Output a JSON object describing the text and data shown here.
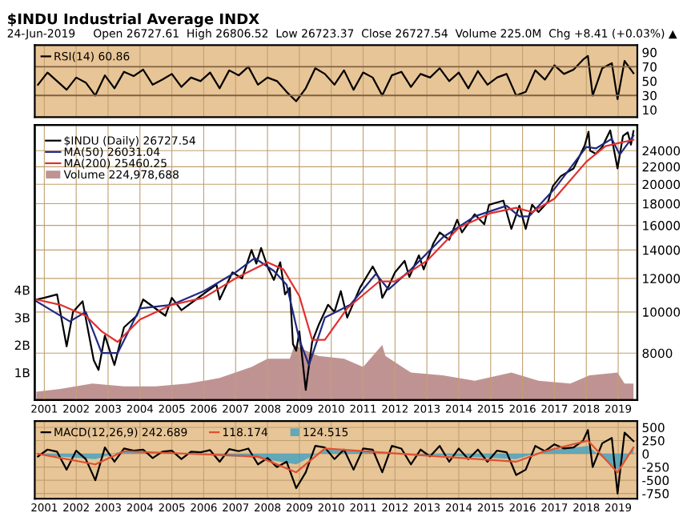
{
  "chart_data": [
    {
      "type": "line",
      "title": "$INDU Industrial Average INDX",
      "subtitle": "24-Jun-2019     Open 26727.61  High 26806.52  Low 26723.37  Close 26727.54  Volume 225.0M  Chg +8.41 (+0.03%) ▲",
      "series": [
        {
          "name": "RSI(14) 60.86",
          "color": "#000000",
          "x": [
            2000.8,
            2001.1,
            2001.4,
            2001.7,
            2002.0,
            2002.3,
            2002.6,
            2002.9,
            2003.2,
            2003.5,
            2003.8,
            2004.1,
            2004.4,
            2004.7,
            2005.0,
            2005.3,
            2005.6,
            2005.9,
            2006.2,
            2006.5,
            2006.8,
            2007.1,
            2007.4,
            2007.7,
            2008.0,
            2008.3,
            2008.6,
            2008.9,
            2009.2,
            2009.5,
            2009.8,
            2010.1,
            2010.4,
            2010.7,
            2011.0,
            2011.3,
            2011.6,
            2011.9,
            2012.2,
            2012.5,
            2012.8,
            2013.1,
            2013.4,
            2013.7,
            2014.0,
            2014.3,
            2014.6,
            2014.9,
            2015.2,
            2015.5,
            2015.8,
            2016.1,
            2016.4,
            2016.7,
            2017.0,
            2017.3,
            2017.6,
            2017.9,
            2018.05,
            2018.2,
            2018.5,
            2018.8,
            2018.98,
            2019.2,
            2019.48
          ],
          "values": [
            45,
            62,
            50,
            38,
            55,
            48,
            30,
            58,
            40,
            63,
            57,
            66,
            45,
            52,
            60,
            42,
            55,
            50,
            62,
            40,
            65,
            58,
            70,
            45,
            55,
            50,
            35,
            22,
            40,
            68,
            60,
            45,
            65,
            38,
            62,
            55,
            30,
            58,
            63,
            42,
            60,
            55,
            68,
            50,
            62,
            40,
            64,
            45,
            55,
            60,
            30,
            35,
            65,
            52,
            72,
            60,
            66,
            80,
            85,
            30,
            68,
            75,
            25,
            78,
            61
          ]
        }
      ],
      "xlim": [
        2000.7,
        2019.6
      ],
      "xticks": [
        2001,
        2002,
        2003,
        2004,
        2005,
        2006,
        2007,
        2008,
        2009,
        2010,
        2011,
        2012,
        2013,
        2014,
        2015,
        2016,
        2017,
        2018,
        2019
      ],
      "ylim": [
        0,
        100
      ],
      "yticks": [
        10,
        30,
        50,
        70,
        90
      ],
      "ref_lines": [
        {
          "axis": "y",
          "value": 30
        },
        {
          "axis": "y",
          "value": 70
        }
      ],
      "grid": "x",
      "legend": "top left",
      "tick_labels": "y"
    },
    {
      "type": "line",
      "series": [
        {
          "name": "Volume 224,978,688",
          "type": "area",
          "axis": "y2",
          "color": "#b07878",
          "x": [
            2000.75,
            2001.5,
            2002.5,
            2003.5,
            2004.5,
            2005.5,
            2006.5,
            2007.5,
            2008.0,
            2008.7,
            2008.85,
            2009.2,
            2009.6,
            2010.4,
            2011.0,
            2011.6,
            2011.7,
            2012.5,
            2013.5,
            2014.5,
            2015.65,
            2016.5,
            2017.5,
            2018.1,
            2018.98,
            2019.2,
            2019.48
          ],
          "values": [
            0.3,
            0.4,
            0.6,
            0.5,
            0.5,
            0.6,
            0.8,
            1.2,
            1.5,
            1.5,
            2.0,
            1.8,
            1.6,
            1.5,
            1.2,
            2.0,
            1.6,
            1.0,
            0.9,
            0.7,
            1.0,
            0.7,
            0.6,
            0.9,
            1.0,
            0.6,
            0.6
          ]
        },
        {
          "name": "$INDU (Daily) 26727.54",
          "type": "line",
          "color": "#000000",
          "x": [
            2000.75,
            2001.0,
            2001.4,
            2001.7,
            2001.9,
            2002.2,
            2002.55,
            2002.7,
            2002.9,
            2003.2,
            2003.5,
            2003.9,
            2004.1,
            2004.8,
            2005.0,
            2005.3,
            2005.9,
            2006.4,
            2006.5,
            2006.9,
            2007.2,
            2007.5,
            2007.65,
            2007.8,
            2008.0,
            2008.2,
            2008.4,
            2008.55,
            2008.7,
            2008.8,
            2008.9,
            2009.0,
            2009.2,
            2009.4,
            2009.6,
            2009.9,
            2010.1,
            2010.3,
            2010.5,
            2010.9,
            2011.3,
            2011.5,
            2011.6,
            2011.8,
            2012.0,
            2012.3,
            2012.45,
            2012.75,
            2012.9,
            2013.2,
            2013.4,
            2013.7,
            2013.95,
            2014.1,
            2014.5,
            2014.8,
            2014.95,
            2015.4,
            2015.65,
            2015.9,
            2016.1,
            2016.3,
            2016.5,
            2016.8,
            2016.95,
            2017.2,
            2017.6,
            2017.95,
            2018.07,
            2018.12,
            2018.3,
            2018.5,
            2018.75,
            2018.85,
            2018.98,
            2019.15,
            2019.3,
            2019.4,
            2019.48
          ],
          "values": [
            10700,
            10800,
            11000,
            8300,
            10000,
            10600,
            7700,
            7300,
            8800,
            7500,
            9200,
            9800,
            10700,
            9800,
            10800,
            10100,
            10900,
            11600,
            10700,
            12400,
            12000,
            14000,
            13000,
            14150,
            12800,
            11900,
            13100,
            11000,
            11400,
            8400,
            8100,
            9000,
            6550,
            8500,
            9300,
            10400,
            10000,
            11200,
            9700,
            11400,
            12800,
            12000,
            10800,
            11500,
            12400,
            13200,
            12100,
            13600,
            12600,
            14500,
            15400,
            14800,
            16500,
            15400,
            17000,
            16100,
            17900,
            18300,
            15700,
            17800,
            15700,
            17900,
            17200,
            18200,
            19800,
            20900,
            21800,
            24700,
            26600,
            24000,
            23600,
            24500,
            26800,
            24500,
            21800,
            26000,
            26500,
            24800,
            26700
          ]
        },
        {
          "name": "MA(50) 26031.04",
          "type": "line",
          "color": "#1f2a80",
          "x": [
            2000.75,
            2001.8,
            2002.3,
            2002.8,
            2003.3,
            2004.0,
            2005.0,
            2006.0,
            2007.0,
            2007.6,
            2008.2,
            2008.6,
            2009.0,
            2009.3,
            2009.8,
            2010.6,
            2011.4,
            2011.8,
            2012.5,
            2013.5,
            2014.5,
            2015.5,
            2015.9,
            2016.2,
            2017.0,
            2018.0,
            2018.3,
            2018.8,
            2019.05,
            2019.48
          ],
          "values": [
            10600,
            9500,
            10000,
            8000,
            8000,
            10200,
            10400,
            11200,
            12400,
            13400,
            12500,
            11600,
            8600,
            7500,
            9700,
            10400,
            12300,
            11300,
            12600,
            15000,
            16800,
            17800,
            16800,
            16800,
            19500,
            24500,
            24300,
            25600,
            23500,
            26031
          ]
        },
        {
          "name": "MA(200) 25460.25",
          "type": "line",
          "color": "#e03030",
          "x": [
            2000.75,
            2001.5,
            2002.3,
            2002.8,
            2003.3,
            2004.0,
            2005.0,
            2006.0,
            2007.0,
            2008.0,
            2008.5,
            2009.0,
            2009.4,
            2009.8,
            2010.5,
            2011.5,
            2012.0,
            2013.0,
            2014.0,
            2015.0,
            2015.8,
            2016.3,
            2017.0,
            2018.0,
            2018.6,
            2019.0,
            2019.48
          ],
          "values": [
            10700,
            10400,
            9800,
            9000,
            8500,
            9600,
            10400,
            10800,
            12000,
            13100,
            12600,
            10900,
            8600,
            8600,
            10200,
            11800,
            11800,
            13200,
            15800,
            17100,
            17600,
            17200,
            18500,
            22600,
            24600,
            25000,
            25460
          ]
        }
      ],
      "xlim": [
        2000.7,
        2019.6
      ],
      "xticks": [
        2001,
        2002,
        2003,
        2004,
        2005,
        2006,
        2007,
        2008,
        2009,
        2010,
        2011,
        2012,
        2013,
        2014,
        2015,
        2016,
        2017,
        2018,
        2019
      ],
      "log": "y",
      "ylim": [
        6200,
        27600
      ],
      "yticks": [
        8000,
        10000,
        12000,
        14000,
        16000,
        18000,
        20000,
        22000,
        24000
      ],
      "y2lim": [
        0,
        10
      ],
      "y2ticks": [
        {
          "value": 1,
          "label": "1B"
        },
        {
          "value": 2,
          "label": "2B"
        },
        {
          "value": 3,
          "label": "3B"
        },
        {
          "value": 4,
          "label": "4B"
        }
      ],
      "grid": true,
      "legend": "top left"
    },
    {
      "type": "line",
      "series": [
        {
          "name": "124.515",
          "type": "area",
          "color": "#40a0c0",
          "x": [
            2000.8,
            2002.6,
            2003.5,
            2007.7,
            2008.9,
            2009.8,
            2015.8,
            2016.7,
            2018.05,
            2018.98,
            2019.48
          ],
          "values": [
            -20,
            -100,
            60,
            -80,
            -200,
            80,
            -100,
            60,
            150,
            -300,
            120
          ]
        },
        {
          "name": "MACD(12,26,9) 242.689",
          "type": "line",
          "color": "#000000",
          "x": [
            2000.8,
            2001.1,
            2001.4,
            2001.7,
            2002.0,
            2002.3,
            2002.6,
            2002.9,
            2003.2,
            2003.5,
            2003.8,
            2004.1,
            2004.4,
            2004.7,
            2005.0,
            2005.3,
            2005.6,
            2005.9,
            2006.2,
            2006.5,
            2006.8,
            2007.1,
            2007.4,
            2007.7,
            2008.0,
            2008.3,
            2008.6,
            2008.9,
            2009.2,
            2009.5,
            2009.8,
            2010.1,
            2010.4,
            2010.7,
            2011.0,
            2011.3,
            2011.6,
            2011.9,
            2012.2,
            2012.5,
            2012.8,
            2013.1,
            2013.4,
            2013.7,
            2014.0,
            2014.3,
            2014.6,
            2014.9,
            2015.2,
            2015.5,
            2015.8,
            2016.1,
            2016.4,
            2016.7,
            2017.0,
            2017.3,
            2017.6,
            2017.9,
            2018.05,
            2018.2,
            2018.5,
            2018.8,
            2018.98,
            2019.2,
            2019.48
          ],
          "values": [
            -50,
            80,
            40,
            -300,
            60,
            -100,
            -500,
            120,
            -150,
            100,
            60,
            80,
            -80,
            40,
            60,
            -100,
            40,
            30,
            70,
            -150,
            90,
            50,
            100,
            -200,
            -80,
            -250,
            -150,
            -650,
            -350,
            150,
            120,
            -100,
            80,
            -300,
            100,
            80,
            -350,
            150,
            100,
            -200,
            80,
            -50,
            150,
            -150,
            100,
            -100,
            80,
            -150,
            60,
            30,
            -400,
            -300,
            150,
            50,
            180,
            100,
            120,
            250,
            450,
            -250,
            200,
            300,
            -750,
            400,
            240
          ]
        },
        {
          "name": "118.174",
          "type": "line",
          "color": "#e05030",
          "x": [
            2000.8,
            2002.6,
            2003.5,
            2007.7,
            2008.9,
            2009.8,
            2015.8,
            2016.7,
            2018.05,
            2018.98,
            2019.48
          ],
          "values": [
            0,
            -200,
            50,
            -50,
            -350,
            100,
            -150,
            50,
            250,
            -350,
            120
          ]
        }
      ],
      "xlim": [
        2000.7,
        2019.6
      ],
      "xticks": [
        2001,
        2002,
        2003,
        2004,
        2005,
        2006,
        2007,
        2008,
        2009,
        2010,
        2011,
        2012,
        2013,
        2014,
        2015,
        2016,
        2017,
        2018,
        2019
      ],
      "ylim": [
        -850,
        620
      ],
      "yticks": [
        -750,
        -500,
        -250,
        0,
        250,
        500
      ],
      "grid": true,
      "legend": "top left"
    }
  ]
}
